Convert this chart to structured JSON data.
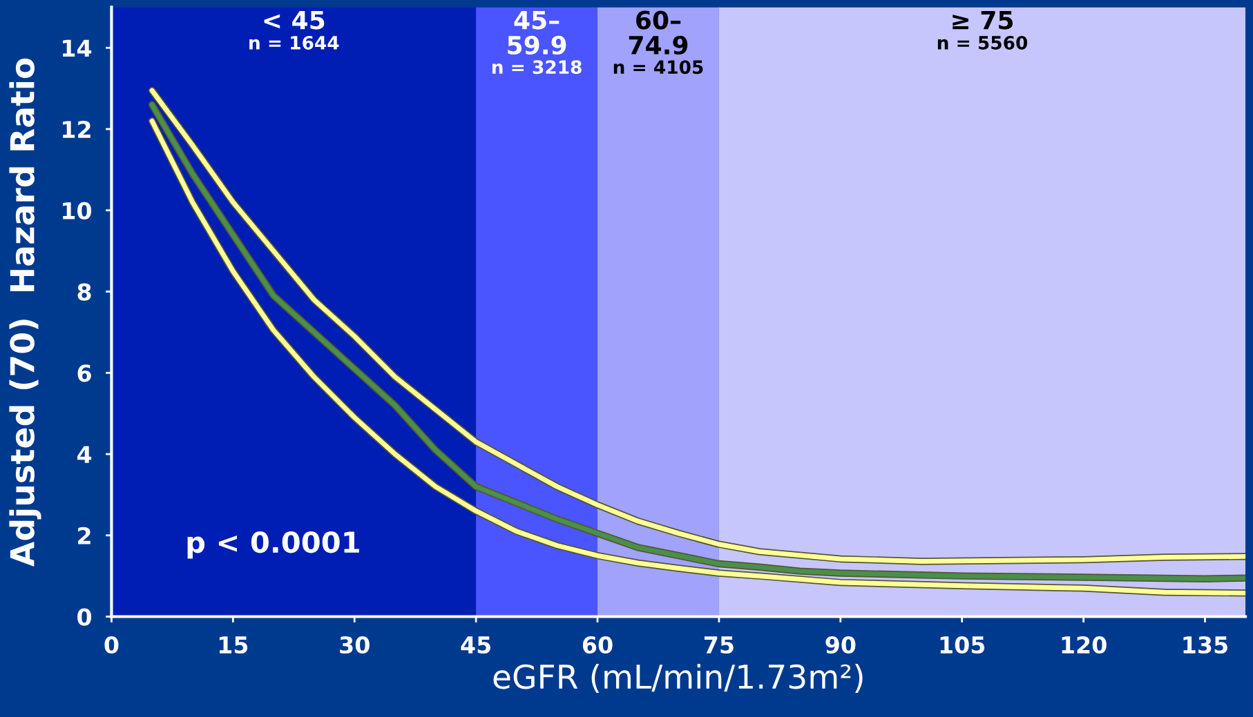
{
  "chart_data": {
    "type": "line",
    "xlabel": "eGFR (mL/min/1.73m²)",
    "ylabel": "Adjusted (70)  Hazard Ratio",
    "xlim": [
      0,
      140
    ],
    "ylim": [
      0,
      15
    ],
    "xticks": [
      0,
      15,
      30,
      45,
      60,
      75,
      90,
      105,
      120,
      135
    ],
    "yticks": [
      0,
      2,
      4,
      6,
      8,
      10,
      12,
      14
    ],
    "grid": false,
    "legend": false,
    "marker": "none",
    "line_style": "solid",
    "bands": [
      {
        "axis": "x",
        "from": 0,
        "to": 45,
        "label": "< 45\nn = 1644",
        "color": "#001eb4"
      },
      {
        "axis": "x",
        "from": 45,
        "to": 60,
        "label": "45–\n59.9\nn = 3218",
        "color": "#4a55ff"
      },
      {
        "axis": "x",
        "from": 60,
        "to": 75,
        "label": "60–\n74.9\nn = 4105",
        "color": "#a0a2fc"
      },
      {
        "axis": "x",
        "from": 75,
        "to": 140,
        "label": "≥ 75\nn = 5560",
        "color": "#c6c6fd"
      }
    ],
    "annotations": [
      "p < 0.0001"
    ],
    "series": [
      {
        "color": "#ffff99",
        "x": [
          5,
          10,
          15,
          20,
          25,
          30,
          35,
          40,
          45,
          50,
          55,
          60,
          65,
          70,
          75,
          80,
          90,
          100,
          110,
          120,
          130,
          140
        ],
        "values": [
          12.95,
          11.6,
          10.2,
          9.0,
          7.8,
          6.9,
          5.9,
          5.1,
          4.3,
          3.75,
          3.2,
          2.75,
          2.35,
          2.05,
          1.78,
          1.6,
          1.42,
          1.36,
          1.38,
          1.4,
          1.46,
          1.48
        ]
      },
      {
        "color": "#ffff99",
        "x": [
          5,
          10,
          15,
          20,
          25,
          30,
          35,
          40,
          45,
          50,
          55,
          60,
          65,
          70,
          75,
          80,
          90,
          105,
          120,
          130,
          140
        ],
        "values": [
          12.2,
          10.2,
          8.5,
          7.05,
          5.9,
          4.9,
          4.0,
          3.2,
          2.6,
          2.1,
          1.75,
          1.5,
          1.32,
          1.19,
          1.07,
          1.0,
          0.84,
          0.76,
          0.7,
          0.6,
          0.58
        ]
      },
      {
        "color": "#4a8f4a",
        "x": [
          5,
          10,
          15,
          20,
          25,
          30,
          35,
          40,
          45,
          50,
          55,
          60,
          65,
          70,
          75,
          80,
          85,
          90,
          105,
          120,
          135,
          140
        ],
        "values": [
          12.6,
          10.9,
          9.4,
          7.9,
          7.0,
          6.1,
          5.2,
          4.1,
          3.2,
          2.8,
          2.4,
          2.05,
          1.7,
          1.5,
          1.3,
          1.22,
          1.12,
          1.07,
          1.0,
          0.97,
          0.93,
          0.95
        ]
      }
    ]
  }
}
